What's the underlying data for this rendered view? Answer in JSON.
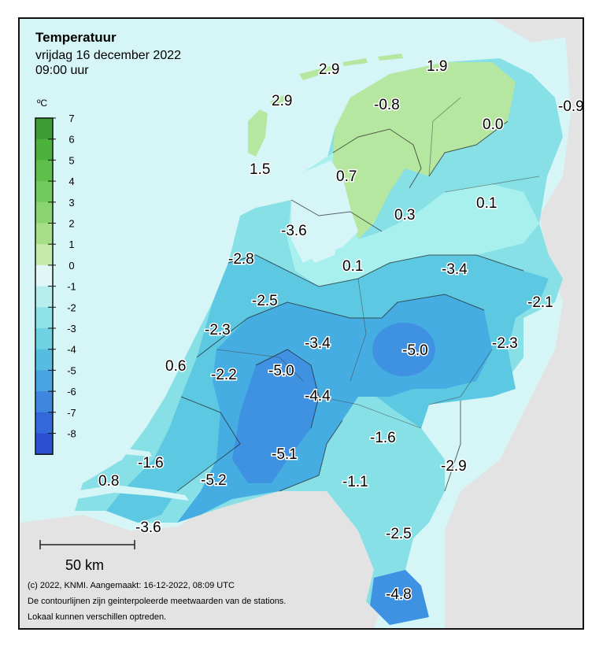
{
  "header": {
    "title": "Temperatuur",
    "date": "vrijdag 16 december 2022",
    "time": "09:00 uur"
  },
  "legend": {
    "unit": "ºC",
    "ticks": [
      "7",
      "6",
      "5",
      "4",
      "3",
      "2",
      "1",
      "0",
      "-1",
      "-2",
      "-3",
      "-4",
      "-5",
      "-6",
      "-7",
      "-8"
    ],
    "colors": [
      "#3c9b33",
      "#4bb23c",
      "#5ec04b",
      "#72ca5c",
      "#8ad46f",
      "#a6df88",
      "#c4eba8",
      "#e0f7f7",
      "#b6eeee",
      "#8ee3e6",
      "#6ed2e2",
      "#56bce0",
      "#4aa3e2",
      "#3f86e0",
      "#3268d8",
      "#2a4fd0"
    ]
  },
  "map": {
    "colors": {
      "sea": "#d6f5f6",
      "land_outside": "#e3e3e3",
      "warm": "#b6e7a0",
      "mild": "#a8f0ee",
      "cold1": "#86e0e6",
      "cold2": "#5cc8e2",
      "cold3": "#46ade2",
      "cold4": "#3f92e2"
    },
    "values": [
      {
        "name": "val-north-island-west",
        "text": "2.9"
      },
      {
        "name": "val-north-island-east",
        "text": "1.9"
      },
      {
        "name": "val-texel",
        "text": "2.9"
      },
      {
        "name": "val-friesland",
        "text": "-0.8"
      },
      {
        "name": "val-east-groningen",
        "text": "-0.9"
      },
      {
        "name": "val-groningen",
        "text": "0.0"
      },
      {
        "name": "val-den-helder",
        "text": "1.5"
      },
      {
        "name": "val-ijsselmeer",
        "text": "0.7"
      },
      {
        "name": "val-lelystad-north",
        "text": "0.3"
      },
      {
        "name": "val-drenthe",
        "text": "0.1"
      },
      {
        "name": "val-noord-holland",
        "text": "-3.6"
      },
      {
        "name": "val-north-sea-coast",
        "text": "-2.8"
      },
      {
        "name": "val-flevoland",
        "text": "0.1"
      },
      {
        "name": "val-overijssel",
        "text": "-3.4"
      },
      {
        "name": "val-twente",
        "text": "-2.1"
      },
      {
        "name": "val-leiden",
        "text": "-2.5"
      },
      {
        "name": "val-hague",
        "text": "-2.3"
      },
      {
        "name": "val-utrecht",
        "text": "-3.4"
      },
      {
        "name": "val-gelderland",
        "text": "-5.0"
      },
      {
        "name": "val-achterhoek",
        "text": "-2.3"
      },
      {
        "name": "val-hook",
        "text": "0.6"
      },
      {
        "name": "val-rotterdam",
        "text": "-2.2"
      },
      {
        "name": "val-rivers",
        "text": "-5.0"
      },
      {
        "name": "val-betuwe",
        "text": "-4.4"
      },
      {
        "name": "val-nijmegen",
        "text": "-1.6"
      },
      {
        "name": "val-zeeland-north",
        "text": "-1.6"
      },
      {
        "name": "val-brabant-west",
        "text": "-5.1"
      },
      {
        "name": "val-limburg-north",
        "text": "-2.9"
      },
      {
        "name": "val-zeeland-coast",
        "text": "0.8"
      },
      {
        "name": "val-brabant-south",
        "text": "-5.2"
      },
      {
        "name": "val-eindhoven",
        "text": "-1.1"
      },
      {
        "name": "val-zeeuws-vlaanderen",
        "text": "-3.6"
      },
      {
        "name": "val-roermond",
        "text": "-2.5"
      },
      {
        "name": "val-south-limburg",
        "text": "-4.8"
      }
    ]
  },
  "scalebar": {
    "label": "50 km"
  },
  "footer": {
    "line1": "(c) 2022, KNMI. Aangemaakt: 16-12-2022, 08:09 UTC",
    "line2": "De contourlijnen zijn geinterpoleerde meetwaarden van de stations.",
    "line3": "Lokaal kunnen verschillen optreden."
  }
}
